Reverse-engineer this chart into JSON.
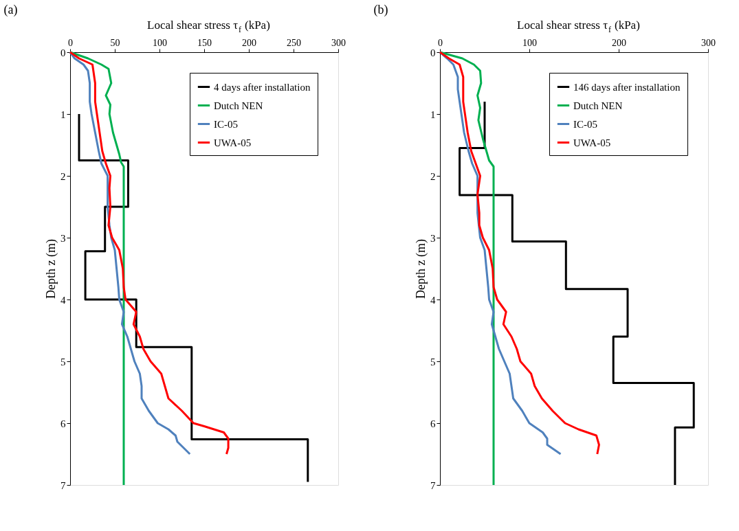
{
  "chart_data": [
    {
      "type": "line",
      "xlabel": "Local shear stress τ$_{f}$ (kPa)",
      "ylabel": "Depth  z (m)",
      "annotations": [
        "(a)"
      ],
      "xlim": [
        0,
        300
      ],
      "xticks": [
        0,
        50,
        100,
        150,
        200,
        250,
        300
      ],
      "ylim": [
        7,
        0
      ],
      "yticks": [
        0,
        1,
        2,
        3,
        4,
        5,
        6,
        7
      ],
      "grid": false,
      "legend": "top right",
      "series": [
        {
          "name": "4 days after installation",
          "color": "#000000",
          "x": [
            10,
            10,
            65,
            65,
            39,
            39,
            17,
            17,
            74,
            74,
            136,
            136,
            266,
            266
          ],
          "values": [
            1.0,
            1.75,
            1.75,
            2.5,
            2.5,
            3.22,
            3.22,
            4.0,
            4.0,
            4.77,
            4.77,
            6.26,
            6.26,
            6.95
          ]
        },
        {
          "name": "Dutch NEN",
          "color": "#00b050",
          "x": [
            0,
            20,
            35,
            43,
            46,
            40,
            45,
            44,
            48,
            52,
            55,
            57,
            60,
            60
          ],
          "values": [
            0,
            0.1,
            0.2,
            0.27,
            0.5,
            0.7,
            0.85,
            1.0,
            1.3,
            1.5,
            1.65,
            1.78,
            1.85,
            7
          ]
        },
        {
          "name": "IC-05",
          "color": "#4f81bd",
          "x": [
            0,
            5,
            15,
            20,
            22,
            22,
            24,
            28,
            32,
            35,
            42,
            42,
            42,
            44,
            46,
            50,
            52,
            54,
            55,
            60,
            58,
            64,
            68,
            72,
            78,
            80,
            80,
            88,
            98,
            110,
            118,
            120,
            134
          ],
          "values": [
            0,
            0.1,
            0.2,
            0.3,
            0.5,
            0.8,
            1.0,
            1.3,
            1.6,
            1.8,
            2.0,
            2.2,
            2.5,
            2.8,
            3.0,
            3.2,
            3.5,
            3.8,
            4.0,
            4.2,
            4.4,
            4.6,
            4.8,
            5.0,
            5.2,
            5.4,
            5.6,
            5.8,
            6.0,
            6.1,
            6.2,
            6.3,
            6.5
          ]
        },
        {
          "name": "UWA-05",
          "color": "#ff0000",
          "x": [
            0,
            10,
            25,
            26,
            28,
            28,
            30,
            33,
            36,
            40,
            45,
            44,
            45,
            43,
            47,
            55,
            59,
            60,
            62,
            74,
            71,
            78,
            82,
            90,
            102,
            106,
            110,
            125,
            138,
            150,
            172,
            177,
            177,
            175
          ],
          "values": [
            0,
            0.1,
            0.2,
            0.3,
            0.5,
            0.8,
            1.0,
            1.3,
            1.6,
            1.8,
            2.0,
            2.2,
            2.5,
            2.8,
            3.0,
            3.2,
            3.5,
            3.8,
            4.0,
            4.2,
            4.4,
            4.6,
            4.8,
            5.0,
            5.2,
            5.4,
            5.6,
            5.8,
            6.0,
            6.05,
            6.15,
            6.25,
            6.4,
            6.5
          ]
        }
      ]
    },
    {
      "type": "line",
      "xlabel": "Local shear stress τ$_{f}$ (kPa)",
      "ylabel": "Depth  z (m)",
      "annotations": [
        "(b)"
      ],
      "xlim": [
        0,
        300
      ],
      "xticks": [
        0,
        100,
        200,
        300
      ],
      "ylim": [
        7,
        0
      ],
      "yticks": [
        0,
        1,
        2,
        3,
        4,
        5,
        6,
        7
      ],
      "grid": false,
      "legend": "top right",
      "series": [
        {
          "name": "146 days after installation",
          "color": "#000000",
          "x": [
            50,
            50,
            22,
            22,
            81,
            81,
            141,
            141,
            210,
            210,
            194,
            194,
            284,
            284,
            263,
            263
          ],
          "values": [
            0.8,
            1.55,
            1.55,
            2.31,
            2.31,
            3.06,
            3.06,
            3.83,
            3.83,
            4.6,
            4.6,
            5.35,
            5.35,
            6.07,
            6.07,
            7
          ]
        },
        {
          "name": "Dutch NEN",
          "color": "#00b050",
          "x": [
            0,
            25,
            38,
            45,
            46,
            42,
            45,
            43,
            48,
            52,
            55,
            60,
            60
          ],
          "values": [
            0,
            0.1,
            0.2,
            0.3,
            0.5,
            0.7,
            0.9,
            1.1,
            1.4,
            1.6,
            1.75,
            1.85,
            7
          ]
        },
        {
          "name": "IC-05",
          "color": "#4f81bd",
          "x": [
            0,
            8,
            15,
            20,
            20,
            22,
            24,
            27,
            32,
            36,
            42,
            42,
            42,
            45,
            50,
            52,
            54,
            55,
            60,
            58,
            62,
            66,
            72,
            78,
            80,
            82,
            92,
            100,
            115,
            120,
            120,
            135
          ],
          "values": [
            0,
            0.1,
            0.2,
            0.4,
            0.6,
            0.8,
            1.0,
            1.3,
            1.6,
            1.8,
            2.0,
            2.3,
            2.6,
            3.0,
            3.2,
            3.5,
            3.8,
            4.0,
            4.2,
            4.4,
            4.6,
            4.8,
            5.0,
            5.2,
            5.4,
            5.6,
            5.8,
            6.0,
            6.15,
            6.25,
            6.35,
            6.5
          ]
        },
        {
          "name": "UWA-05",
          "color": "#ff0000",
          "x": [
            0,
            10,
            22,
            26,
            26,
            26,
            28,
            31,
            35,
            40,
            45,
            42,
            44,
            44,
            48,
            55,
            59,
            60,
            64,
            74,
            71,
            80,
            86,
            90,
            102,
            106,
            114,
            126,
            140,
            155,
            175,
            178,
            176
          ],
          "values": [
            0,
            0.1,
            0.2,
            0.4,
            0.6,
            0.8,
            1.0,
            1.3,
            1.6,
            1.8,
            2.0,
            2.3,
            2.6,
            2.8,
            3.0,
            3.2,
            3.5,
            3.8,
            4.0,
            4.2,
            4.4,
            4.6,
            4.8,
            5.0,
            5.2,
            5.4,
            5.6,
            5.8,
            6.0,
            6.1,
            6.2,
            6.35,
            6.5
          ]
        }
      ]
    }
  ]
}
